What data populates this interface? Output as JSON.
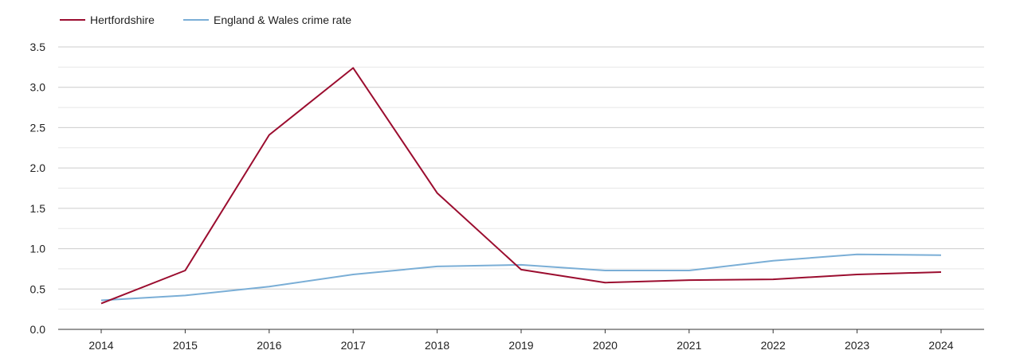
{
  "chart_data": {
    "type": "line",
    "title": "",
    "xlabel": "",
    "ylabel": "",
    "x": [
      "2014",
      "2015",
      "2016",
      "2017",
      "2018",
      "2019",
      "2020",
      "2021",
      "2022",
      "2023",
      "2024"
    ],
    "ylim": [
      0,
      3.5
    ],
    "yticks": [
      "0.0",
      "0.5",
      "1.0",
      "1.5",
      "2.0",
      "2.5",
      "3.0",
      "3.5"
    ],
    "grid": true,
    "legend_position": "top-left",
    "series": [
      {
        "name": "Hertfordshire",
        "color": "#9b0d2f",
        "values": [
          0.32,
          0.73,
          2.41,
          3.24,
          1.69,
          0.74,
          0.58,
          0.61,
          0.62,
          0.68,
          0.71
        ]
      },
      {
        "name": "England & Wales crime rate",
        "color": "#7aaed6",
        "values": [
          0.36,
          0.42,
          0.53,
          0.68,
          0.78,
          0.8,
          0.73,
          0.73,
          0.85,
          0.93,
          0.92
        ]
      }
    ]
  }
}
